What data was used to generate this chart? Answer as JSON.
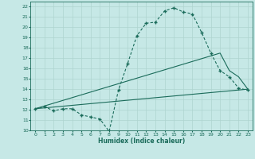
{
  "xlabel": "Humidex (Indice chaleur)",
  "xlim": [
    -0.5,
    23.5
  ],
  "ylim": [
    10,
    22.5
  ],
  "xticks": [
    0,
    1,
    2,
    3,
    4,
    5,
    6,
    7,
    8,
    9,
    10,
    11,
    12,
    13,
    14,
    15,
    16,
    17,
    18,
    19,
    20,
    21,
    22,
    23
  ],
  "yticks": [
    10,
    11,
    12,
    13,
    14,
    15,
    16,
    17,
    18,
    19,
    20,
    21,
    22
  ],
  "bg_color": "#c6e8e6",
  "line_color": "#1a6b5a",
  "grid_color": "#aed4d0",
  "line1_x": [
    0,
    1,
    2,
    3,
    4,
    5,
    6,
    7,
    8,
    9,
    10,
    11,
    12,
    13,
    14,
    15,
    16,
    17,
    18,
    19,
    20,
    21,
    22,
    23
  ],
  "line1_y": [
    12.1,
    12.3,
    11.9,
    12.1,
    12.1,
    11.5,
    11.3,
    11.1,
    9.9,
    13.9,
    16.5,
    19.2,
    20.4,
    20.5,
    21.6,
    21.9,
    21.5,
    21.3,
    19.5,
    17.5,
    15.8,
    15.2,
    14.1,
    13.9
  ],
  "line2_x": [
    0,
    23
  ],
  "line2_y": [
    12.1,
    14.0
  ],
  "line3_x": [
    0,
    20,
    21,
    22,
    23
  ],
  "line3_y": [
    12.1,
    17.5,
    15.8,
    15.2,
    14.0
  ]
}
